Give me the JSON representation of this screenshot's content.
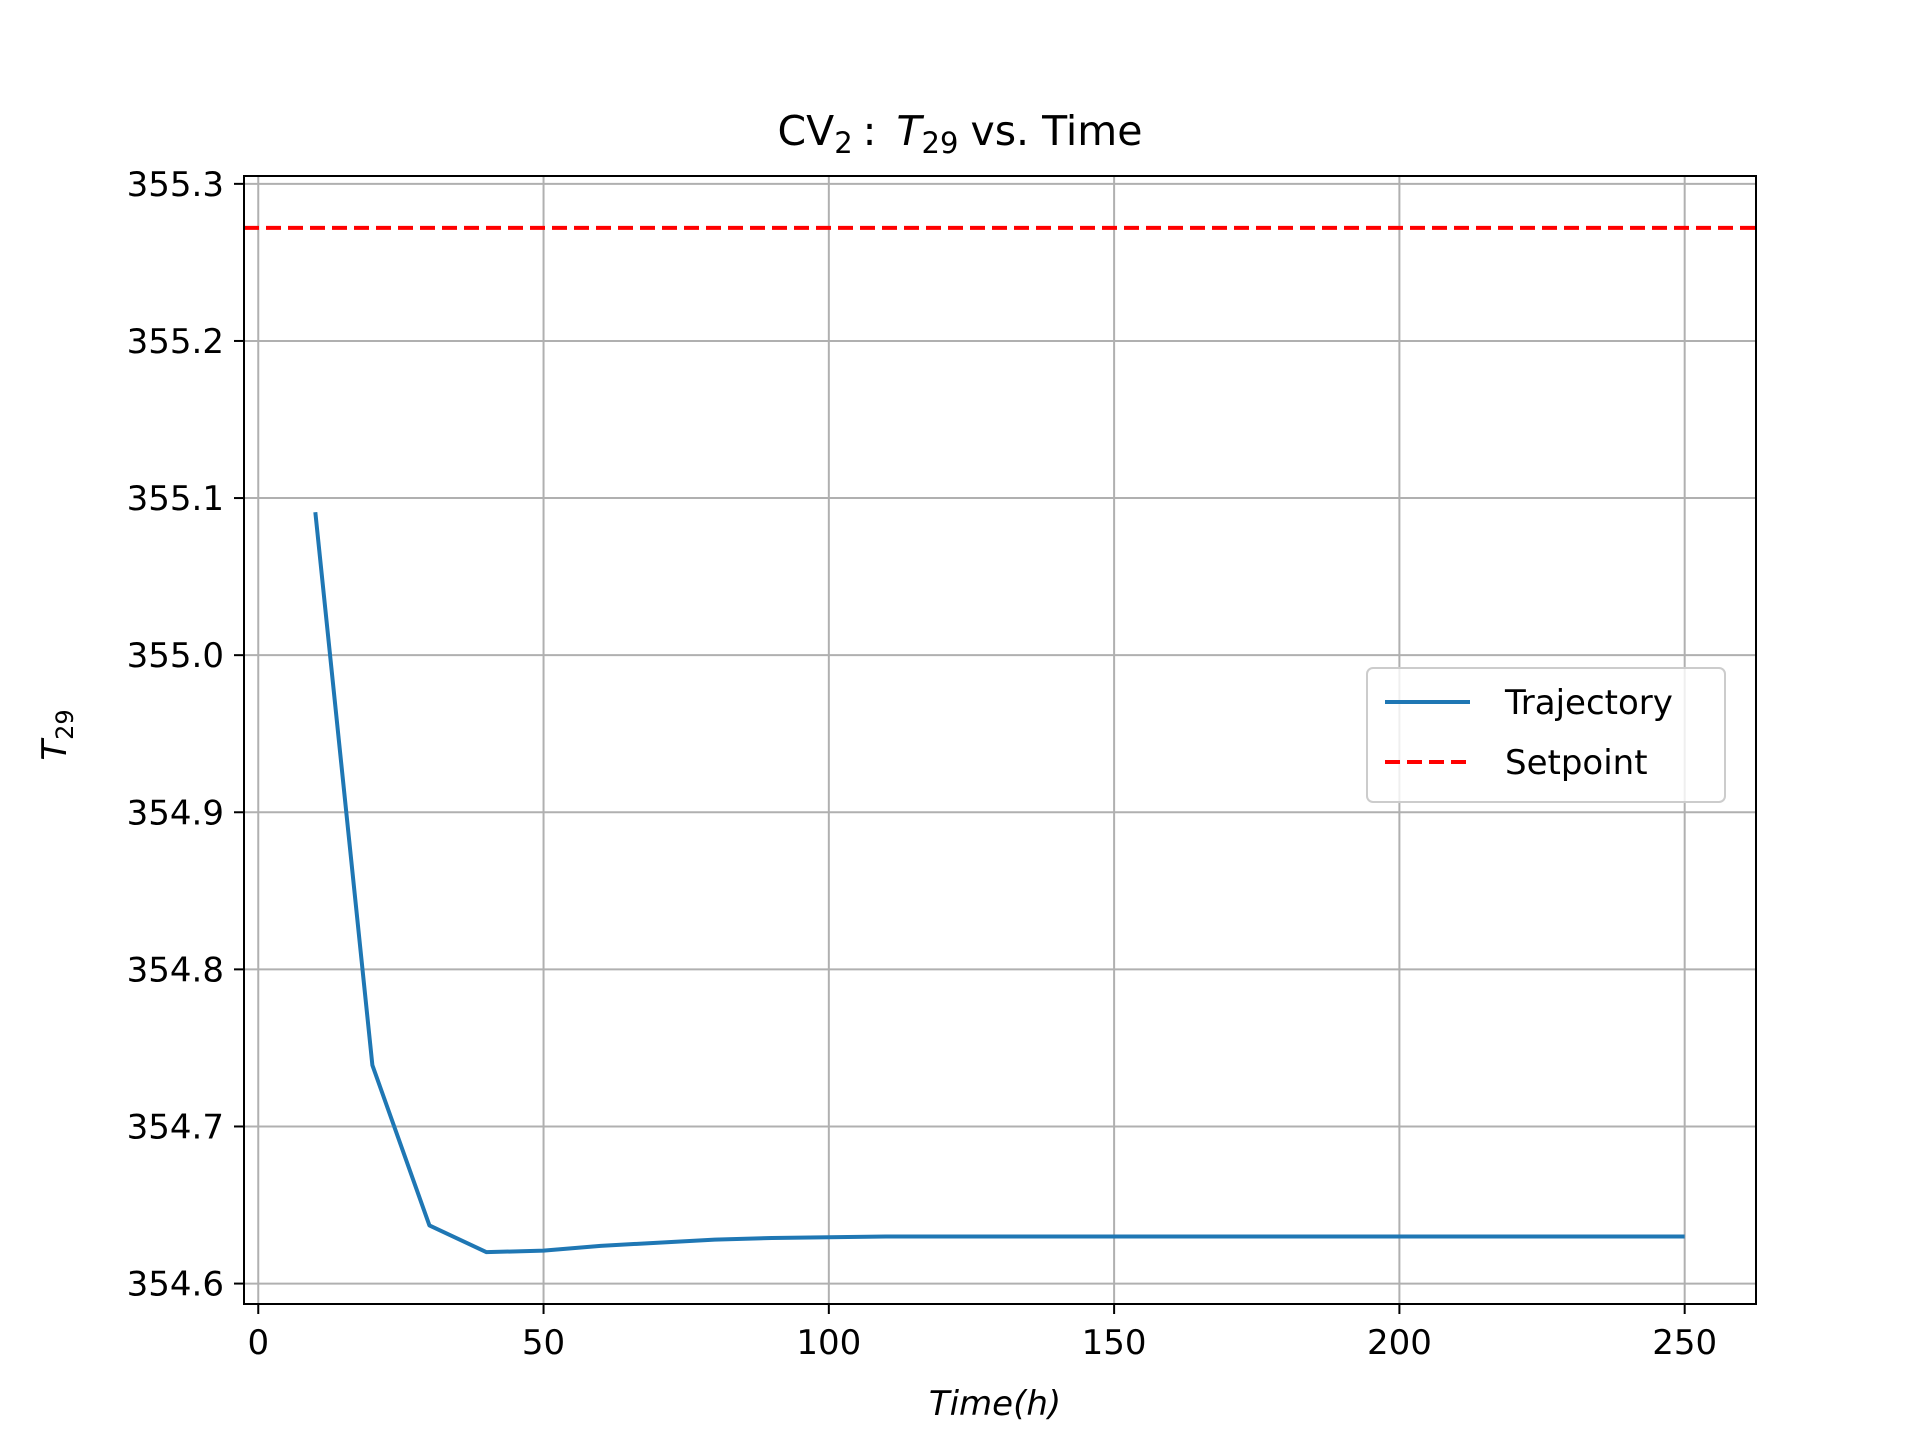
{
  "chart_data": {
    "type": "line",
    "title": {
      "prefix": "CV",
      "prefix_sub": "2",
      "colon": ":",
      "var": "T",
      "var_sub": "29",
      "suffix": "vs. Time"
    },
    "xlabel": "Time(h)",
    "ylabel": {
      "var": "T",
      "sub": "29"
    },
    "xlim": [
      -2.5,
      262.5
    ],
    "ylim": [
      354.587,
      355.305
    ],
    "xticks": [
      0,
      50,
      100,
      150,
      200,
      250
    ],
    "xtick_labels": [
      "0",
      "50",
      "100",
      "150",
      "200",
      "250"
    ],
    "yticks": [
      354.6,
      354.7,
      354.8,
      354.9,
      355.0,
      355.1,
      355.2,
      355.3
    ],
    "ytick_labels": [
      "354.6",
      "354.7",
      "354.8",
      "354.9",
      "355.0",
      "355.1",
      "355.2",
      "355.3"
    ],
    "grid": true,
    "legend_position": "center-right",
    "series": [
      {
        "name": "Trajectory",
        "color": "#1f77b4",
        "style": "solid",
        "x": [
          10,
          20,
          30,
          40,
          50,
          60,
          70,
          80,
          90,
          100,
          110,
          120,
          130,
          140,
          150,
          160,
          170,
          180,
          190,
          200,
          210,
          220,
          230,
          240,
          250
        ],
        "y": [
          355.091,
          354.739,
          354.637,
          354.62,
          354.621,
          354.624,
          354.626,
          354.628,
          354.629,
          354.6295,
          354.63,
          354.63,
          354.63,
          354.63,
          354.63,
          354.63,
          354.63,
          354.63,
          354.63,
          354.63,
          354.63,
          354.63,
          354.63,
          354.63,
          354.63
        ]
      },
      {
        "name": "Setpoint",
        "color": "#ff0000",
        "style": "dashed",
        "y_constant": 355.272
      }
    ]
  }
}
